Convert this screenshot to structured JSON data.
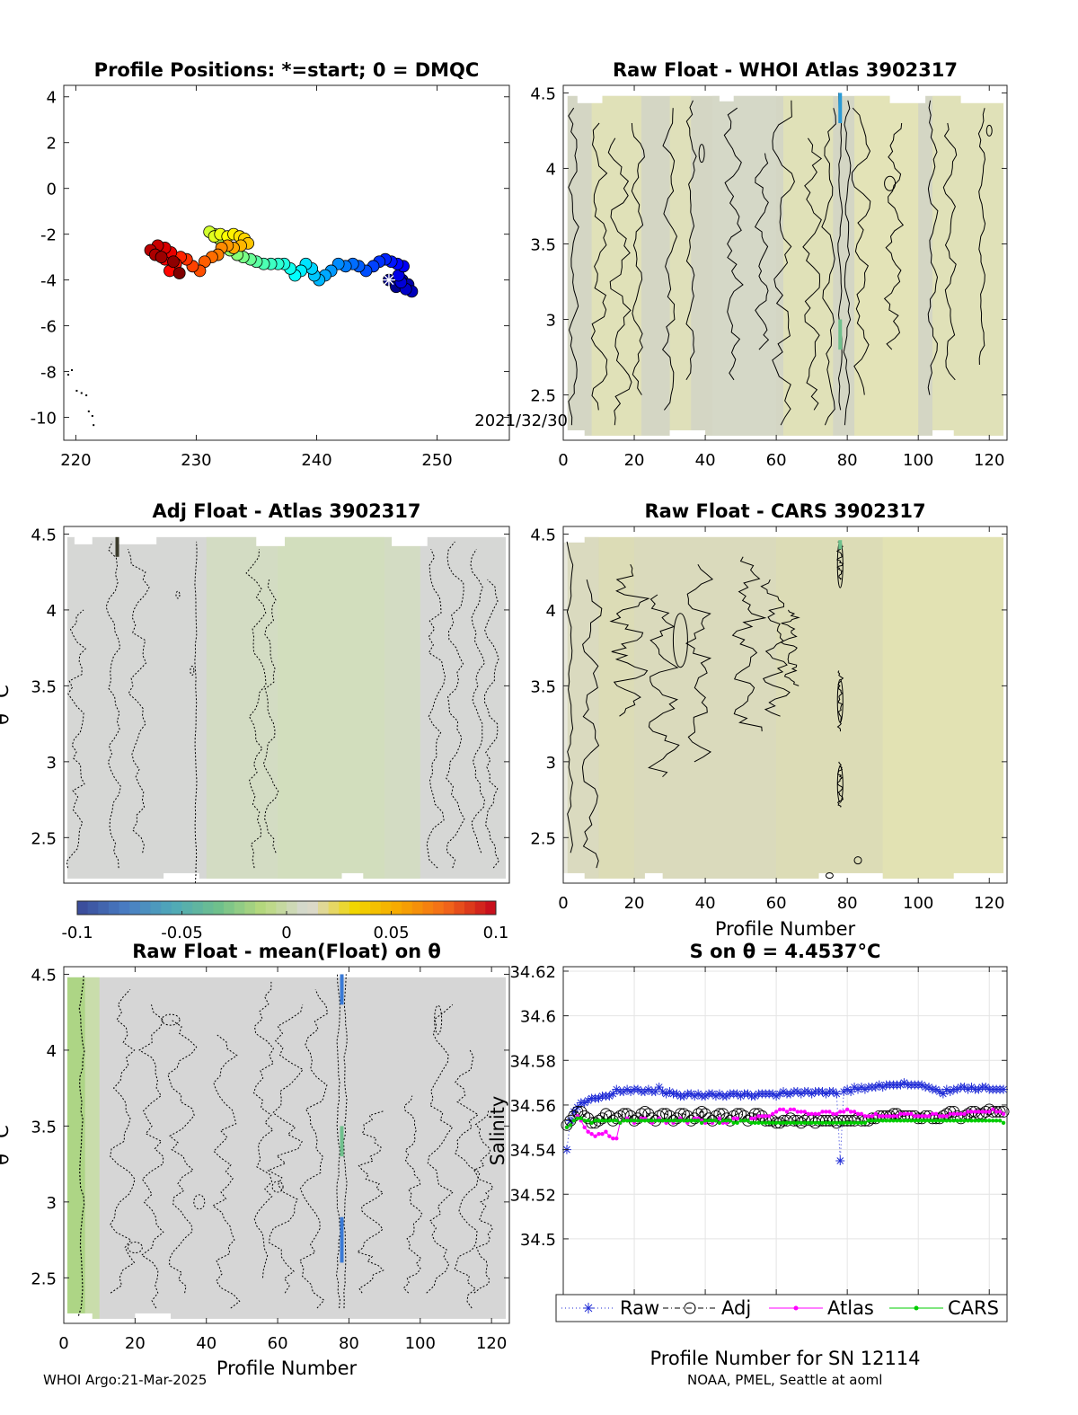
{
  "footer": {
    "left": "WHOI Argo:21-Mar-2025",
    "right": "NOAA, PMEL, Seattle at aoml"
  },
  "colors": {
    "raw": "#1f2bd6",
    "adj": "#000000",
    "atlas": "#ff00ff",
    "cars": "#00cc00",
    "colormap": [
      "#3b4e9c",
      "#4a7fc4",
      "#4fa9b8",
      "#6fc08c",
      "#b9d97c",
      "#d9d9d9",
      "#f1d600",
      "#f7a700",
      "#f36a1a",
      "#c8101c"
    ]
  },
  "chart_data": [
    {
      "type": "scatter",
      "title": "Profile Positions: *=start; 0 = DMQC",
      "xlim": [
        219,
        256
      ],
      "ylim": [
        -11,
        4.5
      ],
      "xticks": [
        "220",
        "230",
        "240",
        "250"
      ],
      "yticks": [
        "4",
        "2",
        "0",
        "-2",
        "-4",
        "-6",
        "-8",
        "-10"
      ],
      "annotation": "2021/32/30",
      "color_by": "profile number (jet colormap)",
      "start": {
        "x": 246.0,
        "y": -4.0
      },
      "track": [
        [
          246.0,
          -4.0
        ],
        [
          246.6,
          -4.3
        ],
        [
          247.1,
          -4.0
        ],
        [
          247.6,
          -4.2
        ],
        [
          247.9,
          -4.5
        ],
        [
          247.4,
          -4.4
        ],
        [
          247.0,
          -4.1
        ],
        [
          246.8,
          -3.8
        ],
        [
          247.2,
          -3.4
        ],
        [
          246.7,
          -3.3
        ],
        [
          246.2,
          -3.2
        ],
        [
          245.7,
          -3.1
        ],
        [
          245.2,
          -3.2
        ],
        [
          244.7,
          -3.4
        ],
        [
          244.1,
          -3.6
        ],
        [
          243.5,
          -3.4
        ],
        [
          243.0,
          -3.3
        ],
        [
          242.4,
          -3.4
        ],
        [
          241.8,
          -3.3
        ],
        [
          241.2,
          -3.6
        ],
        [
          240.7,
          -3.8
        ],
        [
          240.2,
          -4.0
        ],
        [
          239.8,
          -3.8
        ],
        [
          239.6,
          -3.5
        ],
        [
          239.1,
          -3.3
        ],
        [
          238.7,
          -3.6
        ],
        [
          238.2,
          -3.8
        ],
        [
          237.8,
          -3.5
        ],
        [
          237.3,
          -3.3
        ],
        [
          236.8,
          -3.3
        ],
        [
          236.2,
          -3.3
        ],
        [
          235.6,
          -3.3
        ],
        [
          235.0,
          -3.2
        ],
        [
          234.5,
          -3.1
        ],
        [
          233.9,
          -3.0
        ],
        [
          233.4,
          -2.9
        ],
        [
          232.8,
          -2.7
        ],
        [
          232.3,
          -2.4
        ],
        [
          231.9,
          -2.2
        ],
        [
          231.5,
          -2.0
        ],
        [
          231.1,
          -1.9
        ],
        [
          231.5,
          -2.1
        ],
        [
          232.0,
          -2.0
        ],
        [
          232.6,
          -2.1
        ],
        [
          233.1,
          -2.0
        ],
        [
          233.6,
          -2.1
        ],
        [
          234.0,
          -2.2
        ],
        [
          234.3,
          -2.4
        ],
        [
          233.7,
          -2.5
        ],
        [
          233.1,
          -2.6
        ],
        [
          232.6,
          -2.5
        ],
        [
          232.1,
          -2.6
        ],
        [
          231.8,
          -2.9
        ],
        [
          231.3,
          -3.0
        ],
        [
          230.7,
          -3.2
        ],
        [
          230.3,
          -3.6
        ],
        [
          229.7,
          -3.4
        ],
        [
          229.2,
          -3.1
        ],
        [
          228.7,
          -3.0
        ],
        [
          228.3,
          -3.3
        ],
        [
          227.8,
          -3.6
        ],
        [
          227.4,
          -3.1
        ],
        [
          227.9,
          -2.8
        ],
        [
          227.4,
          -2.6
        ],
        [
          226.8,
          -2.5
        ],
        [
          226.2,
          -2.7
        ],
        [
          226.6,
          -2.9
        ],
        [
          227.1,
          -3.0
        ],
        [
          228.1,
          -3.2
        ],
        [
          228.6,
          -3.7
        ]
      ],
      "coast_dots": [
        [
          219.3,
          -8.1
        ],
        [
          219.6,
          -7.9
        ],
        [
          220.0,
          -8.8
        ],
        [
          220.4,
          -8.9
        ],
        [
          220.8,
          -9.0
        ],
        [
          221.0,
          -9.7
        ],
        [
          221.3,
          -9.9
        ],
        [
          221.4,
          -10.3
        ]
      ]
    },
    {
      "type": "heatmap",
      "title": "Raw Float - WHOI Atlas  3902317",
      "xlim": [
        0,
        125
      ],
      "ylim": [
        2.2,
        4.55
      ],
      "xticks": [
        "0",
        "20",
        "40",
        "60",
        "80",
        "100",
        "120"
      ],
      "yticks": [
        "4.5",
        "4",
        "3.5",
        "3",
        "2.5"
      ]
    },
    {
      "type": "heatmap",
      "title": "Adj Float - Atlas  3902317",
      "ylabel": "θ °C",
      "xlim": [
        0,
        125
      ],
      "ylim": [
        2.2,
        4.55
      ],
      "yticks": [
        "4.5",
        "4",
        "3.5",
        "3",
        "2.5"
      ],
      "colorbar": {
        "range": [
          -0.1,
          0.1
        ],
        "ticks": [
          "-0.1",
          "-0.05",
          "0",
          "0.05",
          "0.1"
        ]
      }
    },
    {
      "type": "heatmap",
      "title": "Raw Float - CARS  3902317",
      "xlabel": "Profile Number",
      "xlim": [
        0,
        125
      ],
      "ylim": [
        2.2,
        4.55
      ],
      "xticks": [
        "0",
        "20",
        "40",
        "60",
        "80",
        "100",
        "120"
      ],
      "yticks": [
        "4.5",
        "4",
        "3.5",
        "3",
        "2.5"
      ]
    },
    {
      "type": "heatmap",
      "title": "Raw Float - mean(Float) on θ",
      "xlabel": "Profile Number",
      "ylabel": "θ °C",
      "xlim": [
        0,
        125
      ],
      "ylim": [
        2.2,
        4.55
      ],
      "xticks": [
        "0",
        "20",
        "40",
        "60",
        "80",
        "100",
        "120"
      ],
      "yticks": [
        "4.5",
        "4",
        "3.5",
        "3",
        "2.5"
      ]
    },
    {
      "type": "line",
      "title": "S on θ = 4.4537°C",
      "xlabel": "Profile Number for SN 12114",
      "ylabel": "Salinity",
      "xlim": [
        0,
        125
      ],
      "ylim": [
        34.475,
        34.622
      ],
      "xticks": [
        "0",
        "20",
        "40",
        "60",
        "80",
        "100",
        "120"
      ],
      "yticks": [
        "34.62",
        "34.6",
        "34.58",
        "34.56",
        "34.54",
        "34.52",
        "34.5"
      ],
      "grid": true,
      "legend_placement": "below",
      "x": [
        1,
        2,
        3,
        4,
        5,
        6,
        7,
        8,
        9,
        10,
        11,
        12,
        13,
        14,
        15,
        16,
        17,
        18,
        19,
        20,
        21,
        22,
        23,
        24,
        25,
        26,
        27,
        28,
        29,
        30,
        31,
        32,
        33,
        34,
        35,
        36,
        37,
        38,
        39,
        40,
        41,
        42,
        43,
        44,
        45,
        46,
        47,
        48,
        49,
        50,
        51,
        52,
        53,
        54,
        55,
        56,
        57,
        58,
        59,
        60,
        61,
        62,
        63,
        64,
        65,
        66,
        67,
        68,
        69,
        70,
        71,
        72,
        73,
        74,
        75,
        76,
        77,
        78,
        79,
        80,
        81,
        82,
        83,
        84,
        85,
        86,
        87,
        88,
        89,
        90,
        91,
        92,
        93,
        94,
        95,
        96,
        97,
        98,
        99,
        100,
        101,
        102,
        103,
        104,
        105,
        106,
        107,
        108,
        109,
        110,
        111,
        112,
        113,
        114,
        115,
        116,
        117,
        118,
        119,
        120,
        121,
        122,
        123,
        124
      ],
      "series": [
        {
          "name": "Raw",
          "values": [
            34.54,
            34.553,
            34.557,
            34.559,
            34.561,
            34.561,
            34.562,
            34.563,
            34.563,
            34.563,
            34.564,
            34.564,
            34.564,
            34.565,
            34.567,
            34.566,
            34.566,
            34.567,
            34.566,
            34.567,
            34.567,
            34.566,
            34.566,
            34.567,
            34.566,
            34.566,
            34.568,
            34.566,
            34.565,
            34.566,
            34.565,
            34.565,
            34.564,
            34.564,
            34.565,
            34.565,
            34.564,
            34.565,
            34.564,
            34.564,
            34.565,
            34.565,
            34.564,
            34.565,
            34.564,
            34.564,
            34.565,
            34.565,
            34.565,
            34.564,
            34.565,
            34.565,
            34.564,
            34.564,
            34.565,
            34.565,
            34.565,
            34.565,
            34.565,
            34.564,
            34.565,
            34.566,
            34.565,
            34.565,
            34.566,
            34.566,
            34.565,
            34.566,
            34.566,
            34.565,
            34.566,
            34.566,
            34.566,
            34.565,
            34.566,
            34.566,
            34.565,
            34.535,
            34.566,
            34.567,
            34.566,
            34.568,
            34.567,
            34.568,
            34.567,
            34.568,
            34.568,
            34.568,
            34.569,
            34.568,
            34.569,
            34.569,
            34.569,
            34.569,
            34.569,
            34.57,
            34.569,
            34.569,
            34.569,
            34.569,
            34.569,
            34.568,
            34.568,
            34.567,
            34.567,
            34.566,
            34.565,
            34.567,
            34.566,
            34.567,
            34.567,
            34.568,
            34.568,
            34.567,
            34.568,
            34.567,
            34.567,
            34.568,
            34.568,
            34.567,
            34.567,
            34.567,
            34.567,
            34.567
          ]
        },
        {
          "name": "Adj",
          "values": [
            34.551,
            34.553,
            34.555,
            34.557,
            34.557,
            34.555,
            34.554,
            34.552,
            34.552,
            34.553,
            34.554,
            34.556,
            34.555,
            34.553,
            34.554,
            34.555,
            34.556,
            34.556,
            34.555,
            34.553,
            34.554,
            34.556,
            34.557,
            34.556,
            34.554,
            34.553,
            34.555,
            34.556,
            34.556,
            34.555,
            34.553,
            34.554,
            34.556,
            34.556,
            34.555,
            34.553,
            34.554,
            34.556,
            34.557,
            34.556,
            34.554,
            34.553,
            34.555,
            34.556,
            34.556,
            34.554,
            34.553,
            34.555,
            34.556,
            34.556,
            34.555,
            34.553,
            34.554,
            34.556,
            34.556,
            34.555,
            34.553,
            34.553,
            34.553,
            34.552,
            34.552,
            34.553,
            34.553,
            34.554,
            34.553,
            34.553,
            34.552,
            34.553,
            34.554,
            34.553,
            34.552,
            34.553,
            34.553,
            34.553,
            34.553,
            34.553,
            34.552,
            34.553,
            34.553,
            34.553,
            34.553,
            34.553,
            34.554,
            34.553,
            34.553,
            34.553,
            34.554,
            34.554,
            34.555,
            34.555,
            34.555,
            34.555,
            34.556,
            34.556,
            34.555,
            34.555,
            34.555,
            34.555,
            34.555,
            34.554,
            34.554,
            34.555,
            34.555,
            34.554,
            34.554,
            34.554,
            34.555,
            34.556,
            34.557,
            34.557,
            34.555,
            34.554,
            34.555,
            34.556,
            34.557,
            34.557,
            34.556,
            34.556,
            34.557,
            34.558,
            34.557,
            34.557,
            34.557,
            34.557
          ]
        },
        {
          "name": "Atlas",
          "values": [
            34.55,
            34.551,
            34.553,
            34.555,
            34.553,
            34.55,
            34.548,
            34.547,
            34.546,
            34.547,
            34.547,
            34.548,
            34.546,
            34.545,
            34.545,
            34.552,
            34.553,
            34.554,
            34.553,
            34.552,
            34.553,
            34.554,
            34.554,
            34.553,
            34.552,
            34.553,
            34.554,
            34.553,
            34.552,
            34.553,
            34.552,
            34.553,
            34.554,
            34.553,
            34.552,
            34.553,
            34.554,
            34.554,
            34.553,
            34.552,
            34.553,
            34.552,
            34.553,
            34.554,
            34.552,
            34.552,
            34.553,
            34.554,
            34.554,
            34.553,
            34.553,
            34.553,
            34.554,
            34.554,
            34.555,
            34.555,
            34.555,
            34.555,
            34.556,
            34.557,
            34.558,
            34.558,
            34.557,
            34.558,
            34.558,
            34.557,
            34.557,
            34.557,
            34.556,
            34.556,
            34.556,
            34.556,
            34.557,
            34.557,
            34.557,
            34.556,
            34.556,
            34.557,
            34.557,
            34.558,
            34.557,
            34.557,
            34.556,
            34.556,
            34.555,
            34.555,
            34.555,
            34.556,
            34.555,
            34.555,
            34.555,
            34.555,
            34.555,
            34.555,
            34.556,
            34.556,
            34.556,
            34.556,
            34.555,
            34.555,
            34.555,
            34.555,
            34.555,
            34.556,
            34.556,
            34.555,
            34.555,
            34.555,
            34.556,
            34.556,
            34.556,
            34.556,
            34.556,
            34.557,
            34.557,
            34.557,
            34.557,
            34.557,
            34.557,
            34.557,
            34.558,
            34.557,
            34.557,
            34.556
          ]
        },
        {
          "name": "CARS",
          "values": [
            34.55,
            34.551,
            34.553,
            34.554,
            34.554,
            34.553,
            34.553,
            34.552,
            34.553,
            34.553,
            34.553,
            34.553,
            34.553,
            34.553,
            34.553,
            34.552,
            34.553,
            34.553,
            34.553,
            34.553,
            34.553,
            34.553,
            34.553,
            34.553,
            34.553,
            34.553,
            34.553,
            34.553,
            34.553,
            34.553,
            34.553,
            34.553,
            34.553,
            34.553,
            34.553,
            34.553,
            34.553,
            34.553,
            34.552,
            34.553,
            34.553,
            34.553,
            34.553,
            34.552,
            34.553,
            34.553,
            34.553,
            34.552,
            34.552,
            34.553,
            34.553,
            34.553,
            34.552,
            34.552,
            34.552,
            34.552,
            34.552,
            34.552,
            34.552,
            34.552,
            34.552,
            34.552,
            34.552,
            34.552,
            34.552,
            34.552,
            34.552,
            34.552,
            34.552,
            34.552,
            34.552,
            34.552,
            34.552,
            34.552,
            34.552,
            34.552,
            34.552,
            34.552,
            34.552,
            34.552,
            34.552,
            34.552,
            34.552,
            34.552,
            34.552,
            34.553,
            34.553,
            34.553,
            34.553,
            34.553,
            34.553,
            34.553,
            34.553,
            34.553,
            34.553,
            34.553,
            34.553,
            34.553,
            34.553,
            34.553,
            34.553,
            34.553,
            34.553,
            34.553,
            34.553,
            34.553,
            34.553,
            34.553,
            34.553,
            34.553,
            34.553,
            34.553,
            34.553,
            34.553,
            34.553,
            34.553,
            34.553,
            34.553,
            34.553,
            34.553,
            34.553,
            34.553,
            34.553,
            34.552
          ]
        }
      ]
    }
  ]
}
